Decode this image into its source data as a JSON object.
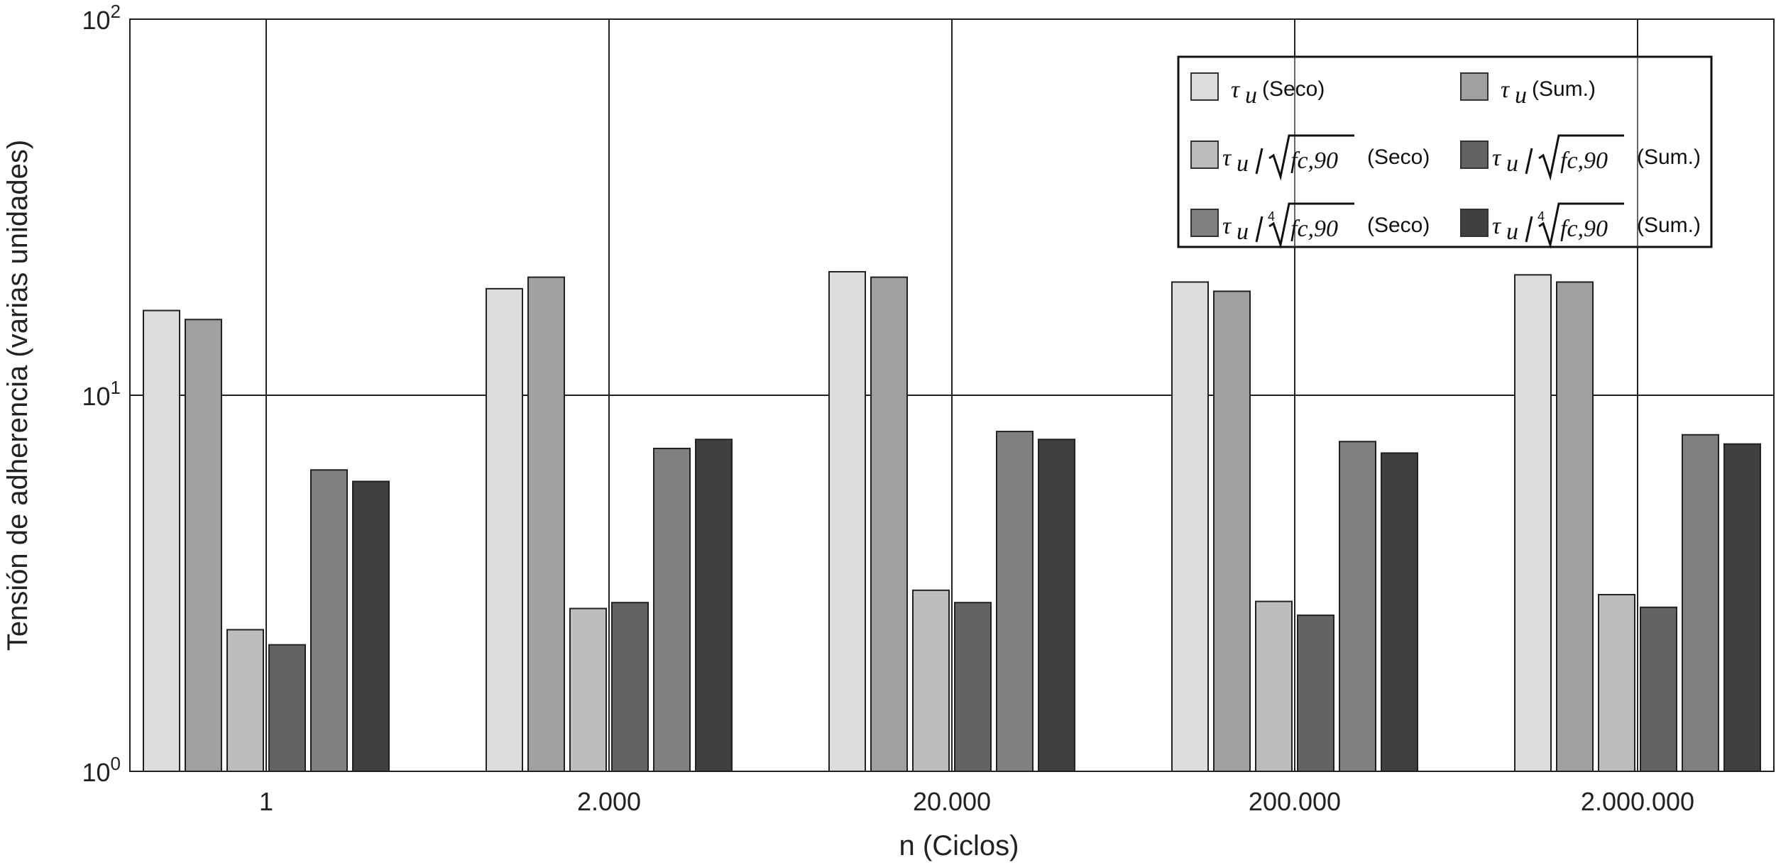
{
  "chart_data": {
    "type": "bar",
    "title": "",
    "xlabel": "n (Ciclos)",
    "ylabel": "Tensión de adherencia (varias unidades)",
    "yscale": "log",
    "ylim": [
      1,
      100
    ],
    "yticks": [
      {
        "base": "10",
        "exp": "0"
      },
      {
        "base": "10",
        "exp": "1"
      },
      {
        "base": "10",
        "exp": "2"
      }
    ],
    "grid": true,
    "legend_position": "top-right",
    "categories": [
      "1",
      "2.000",
      "20.000",
      "200.000",
      "2.000.000"
    ],
    "series": [
      {
        "name": "τu (Seco)",
        "legend": {
          "sym": "τ",
          "sub": "u",
          "root": "",
          "rad": "",
          "cond": "(Seco)"
        },
        "color": "#dcdcde",
        "values": [
          16.8,
          19.2,
          21.3,
          20.0,
          20.9
        ]
      },
      {
        "name": "τu (Sum.)",
        "legend": {
          "sym": "τ",
          "sub": "u",
          "root": "",
          "rad": "",
          "cond": "(Sum.)"
        },
        "color": "#a0a0a3",
        "values": [
          15.9,
          20.6,
          20.6,
          18.9,
          20.0
        ]
      },
      {
        "name": "τu/√fc,90 (Seco)",
        "legend": {
          "sym": "τ",
          "sub": "u",
          "root": "2",
          "rad": "fc,90",
          "cond": "(Seco)"
        },
        "color": "#bdbdbf",
        "values": [
          2.38,
          2.71,
          3.03,
          2.83,
          2.95
        ]
      },
      {
        "name": "τu/√fc,90 (Sum.)",
        "legend": {
          "sym": "τ",
          "sub": "u",
          "root": "2",
          "rad": "fc,90",
          "cond": "(Sum.)"
        },
        "color": "#636365",
        "values": [
          2.17,
          2.81,
          2.81,
          2.6,
          2.73
        ]
      },
      {
        "name": "τu/∜fc,90 (Seco)",
        "legend": {
          "sym": "τ",
          "sub": "u",
          "root": "4",
          "rad": "fc,90",
          "cond": "(Seco)"
        },
        "color": "#808083",
        "values": [
          6.33,
          7.22,
          8.01,
          7.53,
          7.85
        ]
      },
      {
        "name": "τu/∜fc,90 (Sum.)",
        "legend": {
          "sym": "τ",
          "sub": "u",
          "root": "4",
          "rad": "fc,90",
          "cond": "(Sum.)"
        },
        "color": "#404040",
        "values": [
          5.9,
          7.63,
          7.63,
          7.02,
          7.42
        ]
      }
    ]
  }
}
